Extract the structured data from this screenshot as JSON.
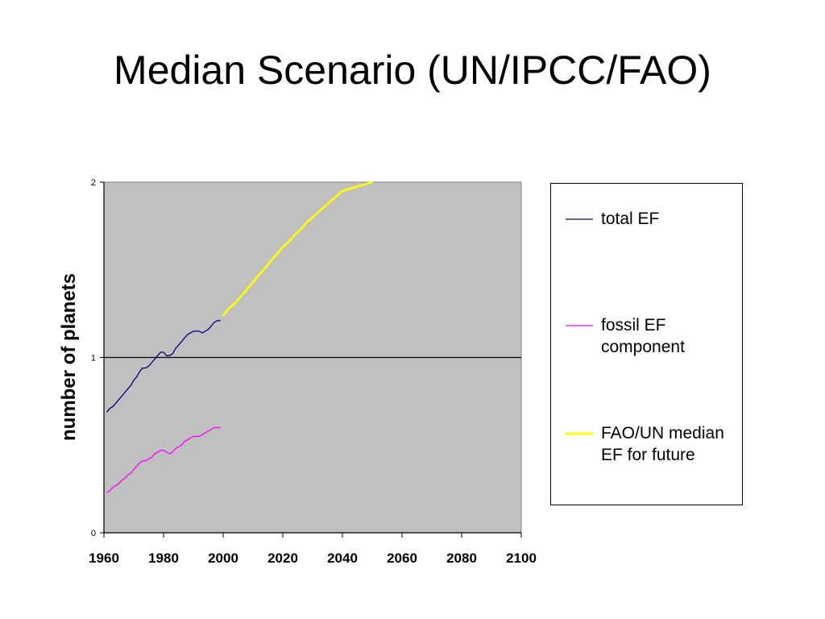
{
  "title": "Median Scenario (UN/IPCC/FAO)",
  "chart_data": {
    "type": "line",
    "ylabel": "number of planets",
    "xlabel": "",
    "xlim": [
      1960,
      2100
    ],
    "ylim": [
      0,
      2
    ],
    "x_ticks": [
      "1960",
      "1980",
      "2000",
      "2020",
      "2040",
      "2060",
      "2080",
      "2100"
    ],
    "y_ticks": [
      "0",
      "1",
      "2"
    ],
    "reference_line": 1,
    "grid": false,
    "plot_background": "#c0c0c0",
    "legend_position": "right",
    "series": [
      {
        "name": "total EF",
        "color": "#000080",
        "points": [
          [
            1961,
            0.69
          ],
          [
            1962,
            0.71
          ],
          [
            1963,
            0.72
          ],
          [
            1964,
            0.74
          ],
          [
            1965,
            0.76
          ],
          [
            1966,
            0.78
          ],
          [
            1967,
            0.8
          ],
          [
            1968,
            0.82
          ],
          [
            1969,
            0.84
          ],
          [
            1970,
            0.87
          ],
          [
            1971,
            0.89
          ],
          [
            1972,
            0.92
          ],
          [
            1973,
            0.94
          ],
          [
            1974,
            0.94
          ],
          [
            1975,
            0.95
          ],
          [
            1976,
            0.97
          ],
          [
            1977,
            0.99
          ],
          [
            1978,
            1.01
          ],
          [
            1979,
            1.03
          ],
          [
            1980,
            1.03
          ],
          [
            1981,
            1.01
          ],
          [
            1982,
            1.01
          ],
          [
            1983,
            1.02
          ],
          [
            1984,
            1.05
          ],
          [
            1985,
            1.07
          ],
          [
            1986,
            1.09
          ],
          [
            1987,
            1.11
          ],
          [
            1988,
            1.13
          ],
          [
            1989,
            1.14
          ],
          [
            1990,
            1.15
          ],
          [
            1991,
            1.15
          ],
          [
            1992,
            1.15
          ],
          [
            1993,
            1.14
          ],
          [
            1994,
            1.15
          ],
          [
            1995,
            1.16
          ],
          [
            1996,
            1.18
          ],
          [
            1997,
            1.2
          ],
          [
            1998,
            1.21
          ],
          [
            1999,
            1.21
          ]
        ]
      },
      {
        "name": "fossil EF component",
        "color": "#ff00ff",
        "points": [
          [
            1961,
            0.23
          ],
          [
            1962,
            0.24
          ],
          [
            1963,
            0.26
          ],
          [
            1964,
            0.27
          ],
          [
            1965,
            0.28
          ],
          [
            1966,
            0.3
          ],
          [
            1967,
            0.31
          ],
          [
            1968,
            0.33
          ],
          [
            1969,
            0.34
          ],
          [
            1970,
            0.36
          ],
          [
            1971,
            0.38
          ],
          [
            1972,
            0.4
          ],
          [
            1973,
            0.41
          ],
          [
            1974,
            0.41
          ],
          [
            1975,
            0.42
          ],
          [
            1976,
            0.43
          ],
          [
            1977,
            0.45
          ],
          [
            1978,
            0.46
          ],
          [
            1979,
            0.47
          ],
          [
            1980,
            0.47
          ],
          [
            1981,
            0.46
          ],
          [
            1982,
            0.45
          ],
          [
            1983,
            0.46
          ],
          [
            1984,
            0.48
          ],
          [
            1985,
            0.49
          ],
          [
            1986,
            0.5
          ],
          [
            1987,
            0.52
          ],
          [
            1988,
            0.53
          ],
          [
            1989,
            0.54
          ],
          [
            1990,
            0.55
          ],
          [
            1991,
            0.55
          ],
          [
            1992,
            0.55
          ],
          [
            1993,
            0.56
          ],
          [
            1994,
            0.57
          ],
          [
            1995,
            0.58
          ],
          [
            1996,
            0.59
          ],
          [
            1997,
            0.6
          ],
          [
            1998,
            0.6
          ],
          [
            1999,
            0.6
          ]
        ]
      },
      {
        "name": "FAO/UN median EF for future",
        "color": "#ffff00",
        "points": [
          [
            2000,
            1.24
          ],
          [
            2002,
            1.28
          ],
          [
            2004,
            1.31
          ],
          [
            2006,
            1.35
          ],
          [
            2008,
            1.39
          ],
          [
            2010,
            1.43
          ],
          [
            2012,
            1.47
          ],
          [
            2014,
            1.51
          ],
          [
            2016,
            1.55
          ],
          [
            2018,
            1.59
          ],
          [
            2020,
            1.63
          ],
          [
            2022,
            1.66
          ],
          [
            2024,
            1.7
          ],
          [
            2026,
            1.73
          ],
          [
            2028,
            1.77
          ],
          [
            2030,
            1.8
          ],
          [
            2032,
            1.83
          ],
          [
            2034,
            1.86
          ],
          [
            2036,
            1.89
          ],
          [
            2038,
            1.92
          ],
          [
            2040,
            1.95
          ],
          [
            2042,
            1.96
          ],
          [
            2044,
            1.97
          ],
          [
            2046,
            1.98
          ],
          [
            2048,
            1.99
          ],
          [
            2050,
            2.0
          ]
        ]
      }
    ]
  },
  "legend": {
    "entries": [
      {
        "label": "total EF",
        "color": "#000080"
      },
      {
        "label": "fossil EF component",
        "color": "#ff00ff"
      },
      {
        "label": "FAO/UN median EF for future",
        "color": "#ffff00"
      }
    ]
  }
}
